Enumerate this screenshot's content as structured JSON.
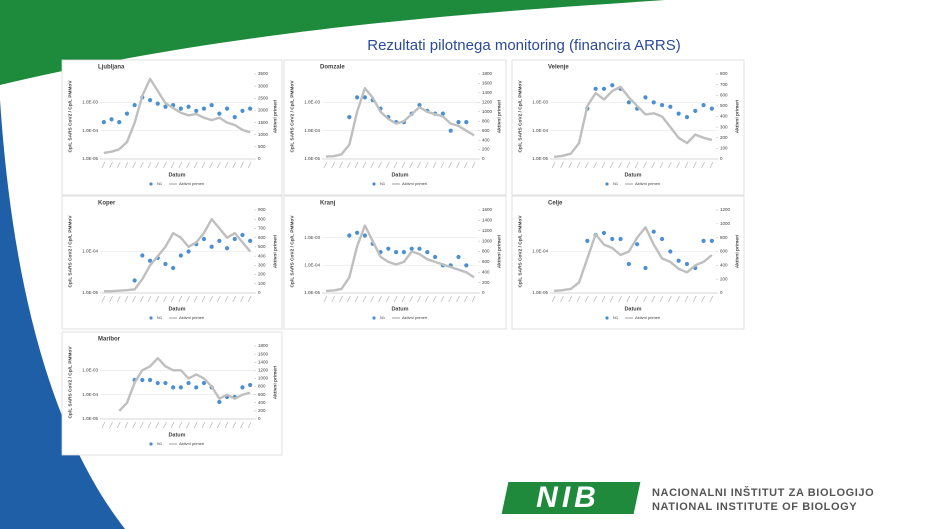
{
  "title": "Rezultati pilotnega monitoring (financira ARRS)",
  "logo": {
    "mark": "NIB",
    "line1": "NACIONALNI INŠTITUT ZA BIOLOGIJO",
    "line2": "NATIONAL INSTITUTE OF BIOLOGY"
  },
  "chart_data": [
    {
      "type": "combo",
      "title": "Ljubljana",
      "x_label": "Datum",
      "y_label": "Cp/L SARS CoV2 / Cp/L PMMoV",
      "y2_label": "Aktivni primeri",
      "log": true,
      "grid": true,
      "categories": [
        null,
        null,
        null,
        null,
        null,
        null,
        null,
        null,
        null,
        null,
        null,
        null,
        null,
        null,
        null,
        null,
        null,
        null,
        null,
        null
      ],
      "ylim": [
        1e-05,
        0.01
      ],
      "yticks": [
        {
          "value": 1e-05,
          "label": "1.0E-05"
        },
        {
          "value": 0.0001,
          "label": "1.0E-04"
        },
        {
          "value": 0.001,
          "label": "1.0E-03"
        }
      ],
      "y2lim": [
        0,
        3500
      ],
      "y2ticks": [
        0,
        500,
        1000,
        1500,
        2000,
        2500,
        3000,
        3500
      ],
      "series": [
        {
          "name": "N1",
          "color": "#4a8fd4",
          "values": [
            0.0002,
            0.00025,
            0.0002,
            0.0004,
            0.0008,
            0.0015,
            0.0012,
            0.0009,
            0.0007,
            0.0008,
            0.0006,
            0.0007,
            0.0005,
            0.0006,
            0.0008,
            0.0004,
            0.0006,
            0.0003,
            0.0005,
            0.0006
          ]
        },
        {
          "name": "Aktivni primeri",
          "color": "#bfbfbf",
          "axis": "y2",
          "values": [
            250,
            300,
            400,
            700,
            1500,
            2600,
            3300,
            2800,
            2300,
            2100,
            1900,
            1800,
            1850,
            1700,
            1600,
            1700,
            1500,
            1400,
            1200,
            1100
          ]
        }
      ]
    },
    {
      "type": "combo",
      "title": "Domzale",
      "x_label": "Datum",
      "y_label": "Cp/L SARS CoV2 / Cp/L PMMoV",
      "y2_label": "Aktivni primeri",
      "log": true,
      "grid": true,
      "categories": [
        null,
        null,
        null,
        null,
        null,
        null,
        null,
        null,
        null,
        null,
        null,
        null,
        null,
        null,
        null,
        null,
        null,
        null,
        null,
        null
      ],
      "ylim": [
        1e-05,
        0.01
      ],
      "yticks": [
        {
          "value": 1e-05,
          "label": "1.0E-05"
        },
        {
          "value": 0.0001,
          "label": "1.0E-04"
        },
        {
          "value": 0.001,
          "label": "1.0E-03"
        }
      ],
      "y2lim": [
        0,
        1800
      ],
      "y2ticks": [
        0,
        200,
        400,
        600,
        800,
        1000,
        1200,
        1400,
        1600,
        1800
      ],
      "series": [
        {
          "name": "N1",
          "color": "#4a8fd4",
          "values": [
            null,
            null,
            null,
            0.0003,
            0.0015,
            0.0015,
            0.0012,
            0.0006,
            0.0003,
            0.0002,
            0.0002,
            0.0004,
            0.0008,
            0.0005,
            0.0004,
            0.0004,
            0.0001,
            0.0002,
            0.0002,
            null
          ]
        },
        {
          "name": "Aktivni primeri",
          "color": "#bfbfbf",
          "axis": "y2",
          "values": [
            50,
            60,
            100,
            300,
            1000,
            1500,
            1300,
            1000,
            850,
            750,
            800,
            950,
            1100,
            1000,
            950,
            900,
            750,
            700,
            600,
            500
          ]
        }
      ]
    },
    {
      "type": "combo",
      "title": "Velenje",
      "x_label": "Datum",
      "y_label": "Cp/L SARS CoV2 / Cp/L PMMoV",
      "y2_label": "Aktivni primeri",
      "log": true,
      "grid": true,
      "categories": [
        null,
        null,
        null,
        null,
        null,
        null,
        null,
        null,
        null,
        null,
        null,
        null,
        null,
        null,
        null,
        null,
        null,
        null,
        null,
        null
      ],
      "ylim": [
        1e-05,
        0.01
      ],
      "yticks": [
        {
          "value": 1e-05,
          "label": "1.0E-05"
        },
        {
          "value": 0.0001,
          "label": "1.0E-04"
        },
        {
          "value": 0.001,
          "label": "1.0E-03"
        }
      ],
      "y2lim": [
        0,
        800
      ],
      "y2ticks": [
        0,
        100,
        200,
        300,
        400,
        500,
        600,
        700,
        800
      ],
      "series": [
        {
          "name": "N1",
          "color": "#4a8fd4",
          "values": [
            null,
            null,
            null,
            null,
            0.0006,
            0.003,
            0.003,
            0.004,
            0.003,
            0.001,
            0.0006,
            0.0015,
            0.001,
            0.0008,
            0.0007,
            0.0004,
            0.0003,
            0.0005,
            0.0008,
            0.0006
          ]
        },
        {
          "name": "Aktivni primeri",
          "color": "#bfbfbf",
          "axis": "y2",
          "values": [
            20,
            30,
            50,
            150,
            500,
            620,
            560,
            640,
            680,
            580,
            500,
            420,
            430,
            400,
            300,
            200,
            150,
            230,
            200,
            180
          ]
        }
      ]
    },
    {
      "type": "combo",
      "title": "Koper",
      "x_label": "Datum",
      "y_label": "Cp/L SARS CoV2 / Cp/L PMMoV",
      "y2_label": "Aktivni primeri",
      "log": true,
      "grid": true,
      "categories": [
        null,
        null,
        null,
        null,
        null,
        null,
        null,
        null,
        null,
        null,
        null,
        null,
        null,
        null,
        null,
        null,
        null,
        null,
        null,
        null
      ],
      "ylim": [
        1e-05,
        0.001
      ],
      "yticks": [
        {
          "value": 1e-05,
          "label": "1.0E-05"
        },
        {
          "value": 0.0001,
          "label": "1.0E-04"
        }
      ],
      "y2lim": [
        0,
        900
      ],
      "y2ticks": [
        0,
        100,
        200,
        300,
        400,
        500,
        600,
        700,
        800,
        900
      ],
      "series": [
        {
          "name": "N1",
          "color": "#4a8fd4",
          "values": [
            null,
            null,
            null,
            null,
            2e-05,
            8e-05,
            6e-05,
            7e-05,
            5e-05,
            4e-05,
            8e-05,
            0.0001,
            0.00015,
            0.0002,
            0.00013,
            0.00018,
            0.00012,
            0.0002,
            0.00025,
            0.00018
          ]
        },
        {
          "name": "Aktivni primeri",
          "color": "#bfbfbf",
          "axis": "y2",
          "values": [
            20,
            20,
            25,
            30,
            40,
            150,
            300,
            400,
            500,
            650,
            600,
            500,
            550,
            650,
            800,
            700,
            600,
            650,
            550,
            450
          ]
        }
      ]
    },
    {
      "type": "combo",
      "title": "Kranj",
      "x_label": "Datum",
      "y_label": "Cp/L SARS CoV2 / Cp/L PMMoV",
      "y2_label": "Aktivni primeri",
      "log": true,
      "grid": true,
      "categories": [
        null,
        null,
        null,
        null,
        null,
        null,
        null,
        null,
        null,
        null,
        null,
        null,
        null,
        null,
        null,
        null,
        null,
        null,
        null,
        null
      ],
      "ylim": [
        1e-05,
        0.01
      ],
      "yticks": [
        {
          "value": 1e-05,
          "label": "1.0E-05"
        },
        {
          "value": 0.0001,
          "label": "1.0E-04"
        },
        {
          "value": 0.001,
          "label": "1.0E-03"
        }
      ],
      "y2lim": [
        0,
        1600
      ],
      "y2ticks": [
        0,
        200,
        400,
        600,
        800,
        1000,
        1200,
        1400,
        1600
      ],
      "series": [
        {
          "name": "N1",
          "color": "#4a8fd4",
          "values": [
            null,
            null,
            null,
            0.0012,
            0.0015,
            0.0012,
            0.0006,
            0.0003,
            0.0004,
            0.0003,
            0.0003,
            0.0004,
            0.0004,
            0.0003,
            0.0002,
            0.0001,
            0.0001,
            0.0002,
            0.0001,
            null
          ]
        },
        {
          "name": "Aktivni primeri",
          "color": "#bfbfbf",
          "axis": "y2",
          "values": [
            40,
            50,
            80,
            300,
            900,
            1300,
            1000,
            700,
            600,
            550,
            600,
            800,
            750,
            650,
            600,
            550,
            500,
            450,
            400,
            300
          ]
        }
      ]
    },
    {
      "type": "combo",
      "title": "Celje",
      "x_label": "Datum",
      "y_label": "Cp/L SARS CoV2 / Cp/L PMMoV",
      "y2_label": "Aktivni primeri",
      "log": true,
      "grid": true,
      "categories": [
        null,
        null,
        null,
        null,
        null,
        null,
        null,
        null,
        null,
        null,
        null,
        null,
        null,
        null,
        null,
        null,
        null,
        null,
        null,
        null
      ],
      "ylim": [
        1e-05,
        0.001
      ],
      "yticks": [
        {
          "value": 1e-05,
          "label": "1.0E-05"
        },
        {
          "value": 0.0001,
          "label": "1.0E-04"
        }
      ],
      "y2lim": [
        0,
        1200
      ],
      "y2ticks": [
        0,
        200,
        400,
        600,
        800,
        1000,
        1200
      ],
      "series": [
        {
          "name": "N1",
          "color": "#4a8fd4",
          "values": [
            null,
            null,
            null,
            null,
            0.00018,
            0.00025,
            0.00028,
            0.0002,
            0.0002,
            5e-05,
            0.00015,
            4e-05,
            0.0003,
            0.0002,
            0.0001,
            6e-05,
            5e-05,
            4e-05,
            0.00018,
            0.00018
          ]
        },
        {
          "name": "Aktivni primeri",
          "color": "#bfbfbf",
          "axis": "y2",
          "values": [
            30,
            40,
            60,
            150,
            500,
            850,
            700,
            650,
            550,
            600,
            800,
            950,
            700,
            500,
            450,
            350,
            300,
            400,
            450,
            550
          ]
        }
      ]
    },
    {
      "type": "combo",
      "title": "Maribor",
      "x_label": "Datum",
      "y_label": "Cp/L SARS CoV2 / Cp/L PMMoV",
      "y2_label": "Aktivni primeri",
      "log": true,
      "grid": true,
      "categories": [
        null,
        null,
        null,
        null,
        null,
        null,
        null,
        null,
        null,
        null,
        null,
        null,
        null,
        null,
        null,
        null,
        null,
        null,
        null,
        null
      ],
      "ylim": [
        1e-05,
        0.01
      ],
      "yticks": [
        {
          "value": 1e-05,
          "label": "1.0E-05"
        },
        {
          "value": 0.0001,
          "label": "1.0E-04"
        },
        {
          "value": 0.001,
          "label": "1.0E-03"
        }
      ],
      "y2lim": [
        0,
        1800
      ],
      "y2ticks": [
        0,
        200,
        400,
        600,
        800,
        1000,
        1200,
        1400,
        1600,
        1800
      ],
      "series": [
        {
          "name": "N1",
          "color": "#4a8fd4",
          "values": [
            null,
            null,
            null,
            null,
            0.0004,
            0.0004,
            0.0004,
            0.0003,
            0.0003,
            0.0002,
            0.0002,
            0.0003,
            0.0002,
            0.0003,
            0.0002,
            5e-05,
            8e-05,
            8e-05,
            0.0002,
            0.00025
          ]
        },
        {
          "name": "Aktivni primeri",
          "color": "#bfbfbf",
          "axis": "y2",
          "values": [
            null,
            null,
            200,
            400,
            900,
            1200,
            1300,
            1500,
            1300,
            1200,
            1200,
            1000,
            1100,
            1000,
            800,
            500,
            600,
            500,
            600,
            650
          ]
        }
      ]
    }
  ]
}
